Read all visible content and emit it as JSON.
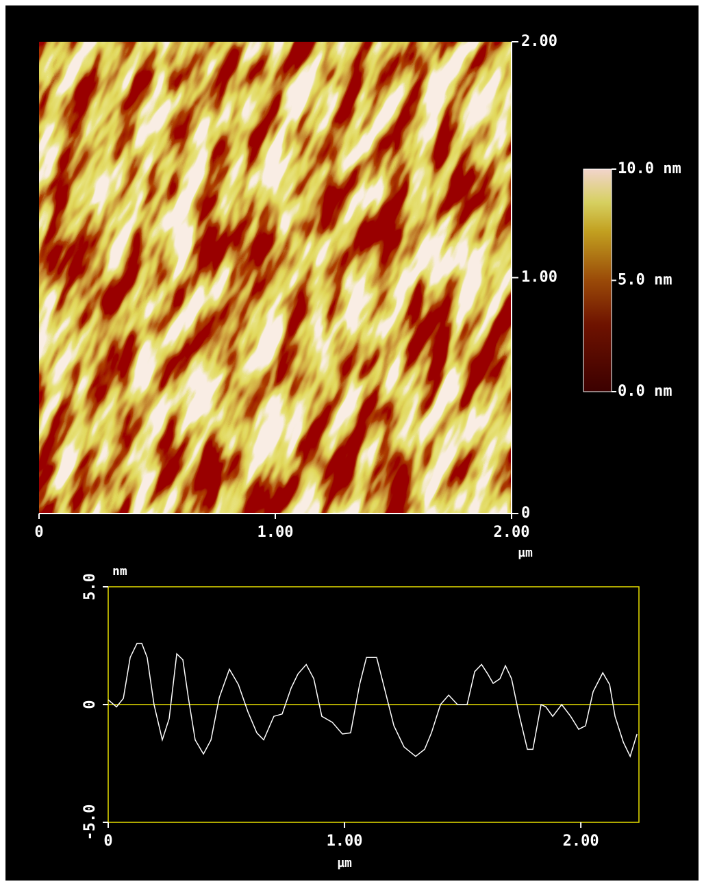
{
  "chart_data": [
    {
      "type": "heatmap",
      "xlim": [
        0,
        2
      ],
      "ylim": [
        0,
        2
      ],
      "xticks": [
        0,
        {
          "value": 1,
          "label": "1.00"
        },
        {
          "value": 2,
          "label": "2.00"
        }
      ],
      "yticks": [
        0,
        {
          "value": 1,
          "label": "1.00"
        },
        {
          "value": 2,
          "label": "2.00"
        }
      ],
      "xlabel": "µm",
      "zlim": [
        0,
        10
      ],
      "zticks": [
        {
          "value": 0,
          "label": "0.0 nm"
        },
        {
          "value": 5,
          "label": "5.0 nm"
        },
        {
          "value": 10,
          "label": "10.0 nm"
        }
      ]
    },
    {
      "type": "line",
      "ylabel": "nm",
      "xlabel": "µm",
      "xlim": [
        0,
        2.246
      ],
      "ylim": [
        -5,
        5
      ],
      "xticks": [
        0,
        {
          "value": 1,
          "label": "1.00"
        },
        {
          "value": 2,
          "label": "2.00"
        }
      ],
      "yticks": [
        {
          "value": -5,
          "label": "-5.0"
        },
        0,
        {
          "value": 5,
          "label": "5.0"
        }
      ],
      "color": "#ffffff",
      "axis_color": "#e8e000",
      "x": [
        0,
        0.035,
        0.064,
        0.093,
        0.122,
        0.142,
        0.165,
        0.194,
        0.229,
        0.258,
        0.29,
        0.316,
        0.339,
        0.368,
        0.403,
        0.435,
        0.47,
        0.513,
        0.551,
        0.591,
        0.629,
        0.658,
        0.701,
        0.736,
        0.774,
        0.803,
        0.838,
        0.87,
        0.904,
        0.948,
        0.991,
        1.026,
        1.064,
        1.093,
        1.136,
        1.165,
        1.209,
        1.252,
        1.301,
        1.339,
        1.368,
        1.406,
        1.441,
        1.478,
        1.519,
        1.551,
        1.58,
        1.606,
        1.629,
        1.658,
        1.681,
        1.707,
        1.736,
        1.774,
        1.797,
        1.832,
        1.852,
        1.881,
        1.919,
        1.957,
        1.991,
        2.02,
        2.052,
        2.093,
        2.122,
        2.145,
        2.18,
        2.209,
        2.238
      ],
      "values": [
        0.2,
        -0.1,
        0.26,
        2.0,
        2.6,
        2.6,
        2.0,
        0,
        -1.5,
        -0.6,
        2.15,
        1.9,
        0.3,
        -1.5,
        -2.1,
        -1.5,
        0.3,
        1.5,
        0.85,
        -0.3,
        -1.2,
        -1.5,
        -0.5,
        -0.4,
        0.7,
        1.3,
        1.7,
        1.1,
        -0.5,
        -0.75,
        -1.25,
        -1.2,
        0.85,
        2.0,
        2.0,
        0.85,
        -0.9,
        -1.8,
        -2.2,
        -1.9,
        -1.2,
        0,
        0.4,
        0,
        0,
        1.4,
        1.7,
        1.3,
        0.9,
        1.1,
        1.65,
        1.1,
        -0.3,
        -1.9,
        -1.9,
        0,
        -0.1,
        -0.5,
        0,
        -0.5,
        -1.05,
        -0.9,
        0.55,
        1.35,
        0.85,
        -0.5,
        -1.6,
        -2.2,
        -1.25
      ]
    }
  ]
}
